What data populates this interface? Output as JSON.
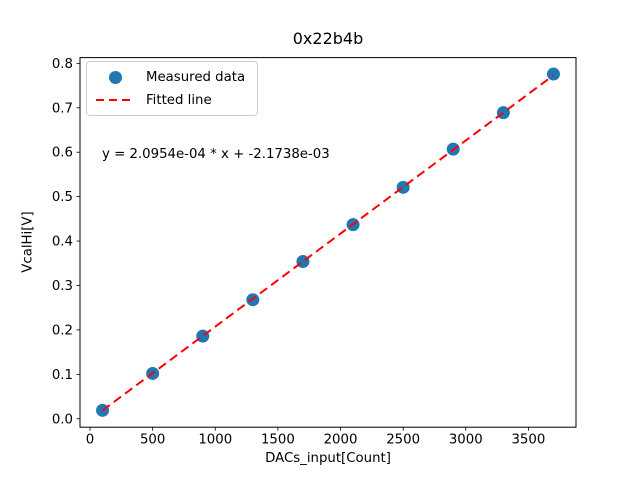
{
  "figure": {
    "title": "0x22b4b",
    "xlabel": "DACs_input[Count]",
    "ylabel": "VcalHi[V]",
    "annotation": "y = 2.0954e-04 * x + -2.1738e-03",
    "legend": {
      "position": "upper left",
      "items": [
        {
          "label": "Measured data",
          "sample": "circle-marker",
          "color": "#1f77b4"
        },
        {
          "label": "Fitted line",
          "sample": "dashed-line",
          "color": "#ff0000"
        }
      ]
    }
  },
  "chart_data": {
    "type": "scatter",
    "title": "0x22b4b",
    "xlabel": "DACs_input[Count]",
    "ylabel": "VcalHi[V]",
    "x": [
      100,
      500,
      900,
      1300,
      1700,
      2100,
      2500,
      2900,
      3300,
      3700
    ],
    "y": [
      0.019,
      0.102,
      0.186,
      0.268,
      0.354,
      0.437,
      0.521,
      0.607,
      0.689,
      0.776
    ],
    "fit": {
      "slope": 0.00020954,
      "intercept": -0.0021738,
      "x_start": 100,
      "x_end": 3700,
      "equation": "y = 2.0954e-04 * x + -2.1738e-03"
    },
    "xlim": [
      -80,
      3880
    ],
    "ylim": [
      -0.019,
      0.813
    ],
    "xticks": {
      "values": [
        0,
        500,
        1000,
        1500,
        2000,
        2500,
        3000,
        3500
      ],
      "labels": [
        "0",
        "500",
        "1000",
        "1500",
        "2000",
        "2500",
        "3000",
        "3500"
      ]
    },
    "yticks": {
      "values": [
        0.0,
        0.1,
        0.2,
        0.3,
        0.4,
        0.5,
        0.6,
        0.7,
        0.8
      ],
      "labels": [
        "0.0",
        "0.1",
        "0.2",
        "0.3",
        "0.4",
        "0.5",
        "0.6",
        "0.7",
        "0.8"
      ]
    },
    "grid": false,
    "legend_position": "upper left",
    "colors": {
      "marker": "#1f77b4",
      "fit_line": "#ff0000",
      "spine": "#000000"
    }
  }
}
